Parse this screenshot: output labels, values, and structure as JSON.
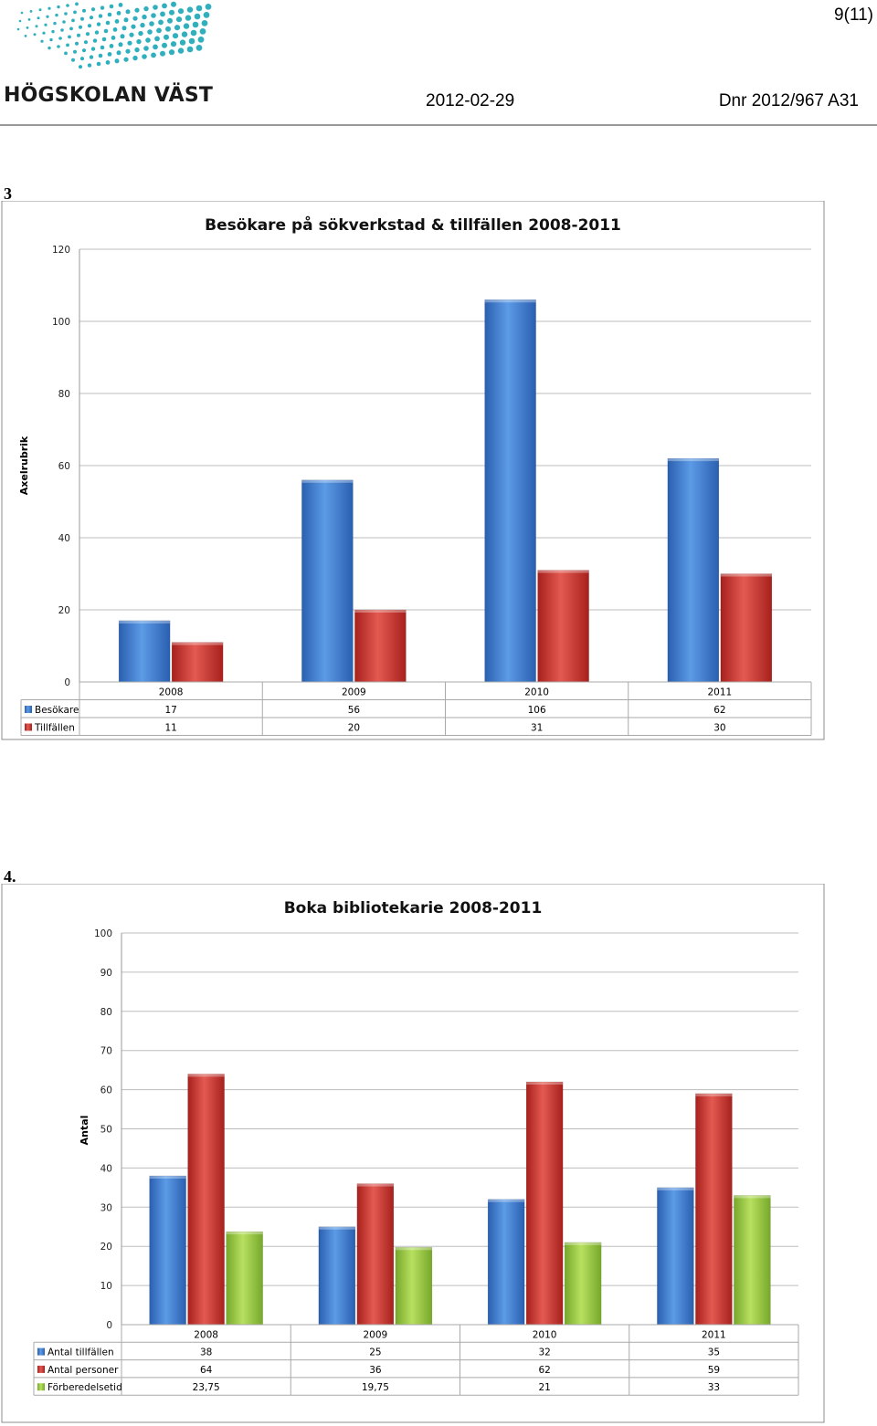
{
  "header": {
    "page_number": "9(11)",
    "logo_text": "HÖGSKOLAN VÄST",
    "date": "2012-02-29",
    "dnr": "Dnr 2012/967 A31",
    "logo_color": "#1aa6b7"
  },
  "sections": {
    "first": "3",
    "second": "4."
  },
  "chart_data": [
    {
      "type": "bar",
      "title": "Besökare på sökverkstad & tillfällen 2008-2011",
      "xlabel": "",
      "ylabel": "Axelrubrik",
      "ylim": [
        0,
        120
      ],
      "yticks": [
        "0",
        "20",
        "40",
        "60",
        "80",
        "100",
        "120"
      ],
      "categories": [
        "2008",
        "2009",
        "2010",
        "2011"
      ],
      "grid": true,
      "legend": "data-table",
      "series": [
        {
          "name": "Besökare",
          "values": [
            17,
            56,
            106,
            62
          ],
          "labels": [
            "17",
            "56",
            "106",
            "62"
          ],
          "color": "#3a78d4"
        },
        {
          "name": "Tillfällen",
          "values": [
            11,
            20,
            31,
            30
          ],
          "labels": [
            "11",
            "20",
            "31",
            "30"
          ],
          "color": "#d13a35"
        }
      ]
    },
    {
      "type": "bar",
      "title": "Boka bibliotekarie 2008-2011",
      "xlabel": "",
      "ylabel": "Antal",
      "ylim": [
        0,
        100
      ],
      "yticks": [
        "0",
        "10",
        "20",
        "30",
        "40",
        "50",
        "60",
        "70",
        "80",
        "90",
        "100"
      ],
      "categories": [
        "2008",
        "2009",
        "2010",
        "2011"
      ],
      "grid": true,
      "legend": "data-table",
      "series": [
        {
          "name": "Antal tillfällen",
          "values": [
            38,
            25,
            32,
            35
          ],
          "labels": [
            "38",
            "25",
            "32",
            "35"
          ],
          "color": "#3a78d4"
        },
        {
          "name": "Antal personer",
          "values": [
            64,
            36,
            62,
            59
          ],
          "labels": [
            "64",
            "36",
            "62",
            "59"
          ],
          "color": "#d13a35"
        },
        {
          "name": "Förberedelsetid",
          "values": [
            23.75,
            19.75,
            21,
            33
          ],
          "labels": [
            "23,75",
            "19,75",
            "21",
            "33"
          ],
          "color": "#9ccc3c"
        }
      ]
    }
  ]
}
